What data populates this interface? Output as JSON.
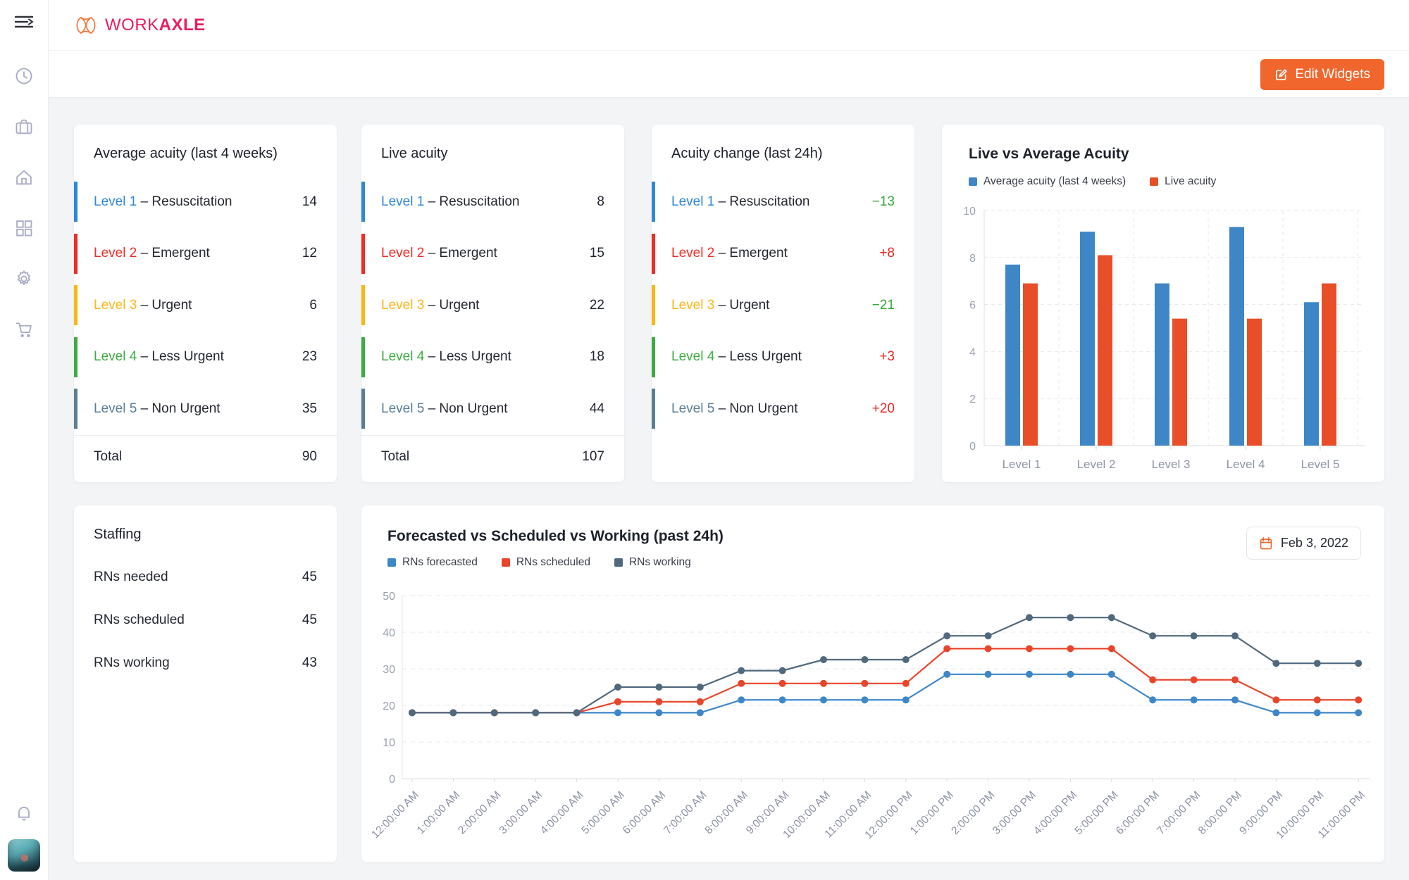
{
  "brand": {
    "word_primary": "WORK",
    "word_secondary": "AXLE",
    "text_color": "#e91e5c",
    "icon_color": "#f4722f"
  },
  "ui": {
    "dash": "–",
    "edit_widgets_label": "Edit Widgets",
    "accent_orange": "#f0662d"
  },
  "cards": {
    "average_acuity": {
      "title": "Average acuity (last 4 weeks)",
      "rows": [
        {
          "level": "Level 1",
          "name": "Resuscitation",
          "value": "14",
          "color": "#2e87d8"
        },
        {
          "level": "Level 2",
          "name": "Emergent",
          "value": "12",
          "color": "#ee2d24"
        },
        {
          "level": "Level 3",
          "name": "Urgent",
          "value": "6",
          "color": "#fbb515"
        },
        {
          "level": "Level 4",
          "name": "Less Urgent",
          "value": "23",
          "color": "#3dab40"
        },
        {
          "level": "Level 5",
          "name": "Non Urgent",
          "value": "35",
          "color": "#5b7e95"
        }
      ],
      "total_label": "Total",
      "total_value": "90"
    },
    "live_acuity": {
      "title": "Live acuity",
      "rows": [
        {
          "level": "Level 1",
          "name": "Resuscitation",
          "value": "8",
          "color": "#2e87d8"
        },
        {
          "level": "Level 2",
          "name": "Emergent",
          "value": "15",
          "color": "#ee2d24"
        },
        {
          "level": "Level 3",
          "name": "Urgent",
          "value": "22",
          "color": "#fbb515"
        },
        {
          "level": "Level 4",
          "name": "Less Urgent",
          "value": "18",
          "color": "#3dab40"
        },
        {
          "level": "Level 5",
          "name": "Non Urgent",
          "value": "44",
          "color": "#5b7e95"
        }
      ],
      "total_label": "Total",
      "total_value": "107"
    },
    "acuity_change": {
      "title": "Acuity change (last 24h)",
      "rows": [
        {
          "level": "Level 1",
          "name": "Resuscitation",
          "value": "−13",
          "color": "#2e87d8",
          "value_color": "#2fa838"
        },
        {
          "level": "Level 2",
          "name": "Emergent",
          "value": "+8",
          "color": "#ee2d24",
          "value_color": "#ee2222"
        },
        {
          "level": "Level 3",
          "name": "Urgent",
          "value": "−21",
          "color": "#fbb515",
          "value_color": "#2fa838"
        },
        {
          "level": "Level 4",
          "name": "Less Urgent",
          "value": "+3",
          "color": "#3dab40",
          "value_color": "#ee2222"
        },
        {
          "level": "Level 5",
          "name": "Non Urgent",
          "value": "+20",
          "color": "#5b7e95",
          "value_color": "#ee2222"
        }
      ]
    },
    "staffing": {
      "title": "Staffing",
      "rows": [
        {
          "label": "RNs needed",
          "value": "45"
        },
        {
          "label": "RNs scheduled",
          "value": "45"
        },
        {
          "label": "RNs working",
          "value": "43"
        }
      ]
    }
  },
  "chart_data": [
    {
      "type": "bar",
      "title": "Live vs Average Acuity",
      "categories": [
        "Level 1",
        "Level 2",
        "Level 3",
        "Level 4",
        "Level 5"
      ],
      "series": [
        {
          "name": "Average acuity (last 4 weeks)",
          "color": "#3e86c6",
          "values": [
            7.7,
            9.1,
            6.9,
            9.3,
            6.1
          ]
        },
        {
          "name": "Live acuity",
          "color": "#e84e27",
          "values": [
            6.9,
            8.1,
            5.4,
            5.4,
            6.9
          ]
        }
      ],
      "ylim": [
        0,
        10
      ],
      "yticks": [
        0,
        2,
        4,
        6,
        8,
        10
      ],
      "grid": true,
      "legend_position": "top"
    },
    {
      "type": "line",
      "title": "Forecasted vs Scheduled vs Working (past 24h)",
      "date_label": "Feb 3, 2022",
      "x": [
        "12:00:00 AM",
        "1:00:00 AM",
        "2:00:00 AM",
        "3:00:00 AM",
        "4:00:00 AM",
        "5:00:00 AM",
        "6:00:00 AM",
        "7:00:00 AM",
        "8:00:00 AM",
        "9:00:00 AM",
        "10:00:00 AM",
        "11:00:00 AM",
        "12:00:00 PM",
        "1:00:00 PM",
        "2:00:00 PM",
        "3:00:00 PM",
        "4:00:00 PM",
        "5:00:00 PM",
        "6:00:00 PM",
        "7:00:00 PM",
        "8:00:00 PM",
        "9:00:00 PM",
        "10:00:00 PM",
        "11:00:00 PM"
      ],
      "series": [
        {
          "name": "RNs forecasted",
          "color": "#3d87c8",
          "values": [
            18,
            18,
            18,
            18,
            18,
            18,
            18,
            18,
            21.5,
            21.5,
            21.5,
            21.5,
            21.5,
            28.5,
            28.5,
            28.5,
            28.5,
            28.5,
            21.5,
            21.5,
            21.5,
            18,
            18,
            18
          ]
        },
        {
          "name": "RNs scheduled",
          "color": "#e8452b",
          "values": [
            18,
            18,
            18,
            18,
            18,
            21,
            21,
            21,
            26,
            26,
            26,
            26,
            26,
            35.5,
            35.5,
            35.5,
            35.5,
            35.5,
            27,
            27,
            27,
            21.5,
            21.5,
            21.5
          ]
        },
        {
          "name": "RNs working",
          "color": "#50697c",
          "values": [
            18,
            18,
            18,
            18,
            18,
            25,
            25,
            25,
            29.5,
            29.5,
            32.5,
            32.5,
            32.5,
            39,
            39,
            44,
            44,
            44,
            39,
            39,
            39,
            31.5,
            31.5,
            31.5
          ]
        }
      ],
      "ylim": [
        0,
        50
      ],
      "yticks": [
        0,
        10,
        20,
        30,
        40,
        50
      ],
      "grid": true,
      "legend_position": "top"
    }
  ]
}
